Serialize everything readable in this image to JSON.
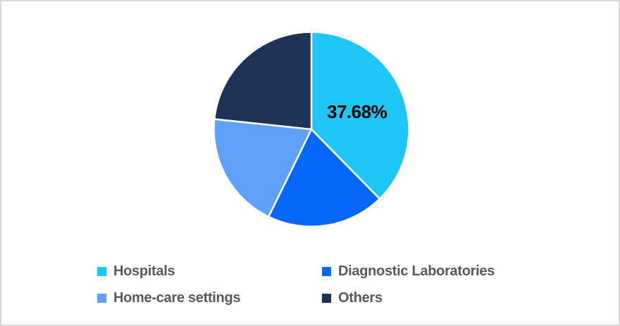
{
  "frame": {
    "background": "#FFFFFF",
    "border_color": "#D8D8D8"
  },
  "chart_data": {
    "type": "pie",
    "categories": [
      "Hospitals",
      "Diagnostic Laboratories",
      "Home-care settings",
      "Others"
    ],
    "values": [
      37.68,
      19.55,
      19.44,
      23.33
    ],
    "colors": [
      "#1EC6F6",
      "#0566FA",
      "#5FA0F8",
      "#1E3256"
    ],
    "slice_border_color": "#FFFFFF",
    "start_angle_deg": 0,
    "direction": "clockwise",
    "legend_position": "bottom",
    "data_labels": [
      {
        "category": "Hospitals",
        "text": "37.68%"
      }
    ]
  },
  "pie_label": {
    "text": "37.68%",
    "color": "#000000"
  },
  "legend": {
    "text_color": "#595959",
    "items": [
      {
        "label": "Hospitals",
        "color": "#1EC6F6"
      },
      {
        "label": "Diagnostic Laboratories",
        "color": "#0566FA"
      },
      {
        "label": "Home-care settings",
        "color": "#5FA0F8"
      },
      {
        "label": "Others",
        "color": "#1E3256"
      }
    ]
  }
}
